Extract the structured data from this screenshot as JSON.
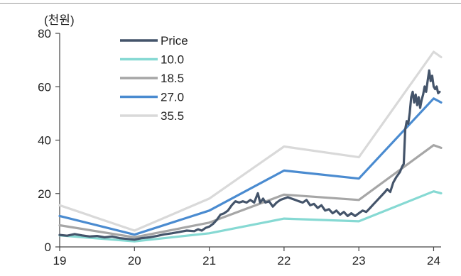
{
  "chart_data": {
    "type": "line",
    "unit_label": "(천원)",
    "xlim": [
      2019,
      2024.1
    ],
    "ylim": [
      0,
      80
    ],
    "x_ticks": [
      {
        "value": 2019,
        "label": "19"
      },
      {
        "value": 2020,
        "label": "20"
      },
      {
        "value": 2021,
        "label": "21"
      },
      {
        "value": 2022,
        "label": "22"
      },
      {
        "value": 2023,
        "label": "23"
      },
      {
        "value": 2024,
        "label": "24"
      }
    ],
    "y_ticks": [
      {
        "value": 0,
        "label": "0"
      },
      {
        "value": 20,
        "label": "20"
      },
      {
        "value": 40,
        "label": "40"
      },
      {
        "value": 60,
        "label": "60"
      },
      {
        "value": 80,
        "label": "80"
      }
    ],
    "legend_position": "top-left",
    "series": [
      {
        "name": "Price",
        "color": "#44546a",
        "width": 3.2,
        "points": [
          [
            2019.0,
            4.5
          ],
          [
            2019.1,
            4.2
          ],
          [
            2019.2,
            4.8
          ],
          [
            2019.3,
            4.3
          ],
          [
            2019.4,
            3.9
          ],
          [
            2019.5,
            4.1
          ],
          [
            2019.6,
            3.6
          ],
          [
            2019.7,
            3.9
          ],
          [
            2019.8,
            3.3
          ],
          [
            2019.9,
            3.0
          ],
          [
            2020.0,
            2.7
          ],
          [
            2020.1,
            3.3
          ],
          [
            2020.2,
            3.6
          ],
          [
            2020.3,
            4.1
          ],
          [
            2020.4,
            4.7
          ],
          [
            2020.5,
            5.1
          ],
          [
            2020.6,
            5.6
          ],
          [
            2020.7,
            6.1
          ],
          [
            2020.8,
            5.9
          ],
          [
            2020.85,
            6.6
          ],
          [
            2020.9,
            6.1
          ],
          [
            2020.95,
            7.1
          ],
          [
            2021.0,
            7.6
          ],
          [
            2021.05,
            8.6
          ],
          [
            2021.1,
            10.1
          ],
          [
            2021.15,
            12.1
          ],
          [
            2021.2,
            12.6
          ],
          [
            2021.25,
            13.6
          ],
          [
            2021.3,
            15.6
          ],
          [
            2021.35,
            17.1
          ],
          [
            2021.4,
            16.6
          ],
          [
            2021.45,
            17.1
          ],
          [
            2021.5,
            16.6
          ],
          [
            2021.55,
            17.6
          ],
          [
            2021.6,
            16.6
          ],
          [
            2021.65,
            20.1
          ],
          [
            2021.68,
            16.6
          ],
          [
            2021.72,
            18.1
          ],
          [
            2021.75,
            16.6
          ],
          [
            2021.8,
            17.1
          ],
          [
            2021.85,
            15.1
          ],
          [
            2021.9,
            16.6
          ],
          [
            2021.95,
            17.6
          ],
          [
            2022.0,
            18.1
          ],
          [
            2022.05,
            18.6
          ],
          [
            2022.1,
            18.1
          ],
          [
            2022.15,
            17.6
          ],
          [
            2022.2,
            17.1
          ],
          [
            2022.25,
            16.6
          ],
          [
            2022.3,
            17.6
          ],
          [
            2022.35,
            15.6
          ],
          [
            2022.4,
            16.1
          ],
          [
            2022.45,
            14.6
          ],
          [
            2022.5,
            15.6
          ],
          [
            2022.55,
            13.6
          ],
          [
            2022.6,
            14.1
          ],
          [
            2022.65,
            12.6
          ],
          [
            2022.7,
            13.6
          ],
          [
            2022.75,
            12.1
          ],
          [
            2022.8,
            13.1
          ],
          [
            2022.85,
            11.6
          ],
          [
            2022.9,
            12.6
          ],
          [
            2022.95,
            11.6
          ],
          [
            2023.0,
            12.6
          ],
          [
            2023.05,
            13.6
          ],
          [
            2023.1,
            13.1
          ],
          [
            2023.15,
            14.6
          ],
          [
            2023.2,
            16.1
          ],
          [
            2023.25,
            17.6
          ],
          [
            2023.3,
            19.1
          ],
          [
            2023.35,
            20.6
          ],
          [
            2023.38,
            21.6
          ],
          [
            2023.42,
            20.6
          ],
          [
            2023.46,
            24.1
          ],
          [
            2023.5,
            26.1
          ],
          [
            2023.55,
            28.1
          ],
          [
            2023.58,
            30.1
          ],
          [
            2023.6,
            31.1
          ],
          [
            2023.62,
            44.1
          ],
          [
            2023.64,
            47.1
          ],
          [
            2023.66,
            46.1
          ],
          [
            2023.68,
            50.1
          ],
          [
            2023.7,
            56.1
          ],
          [
            2023.72,
            58.1
          ],
          [
            2023.74,
            54.1
          ],
          [
            2023.76,
            57.1
          ],
          [
            2023.78,
            53.1
          ],
          [
            2023.8,
            56.1
          ],
          [
            2023.82,
            52.1
          ],
          [
            2023.84,
            55.1
          ],
          [
            2023.86,
            57.1
          ],
          [
            2023.88,
            60.1
          ],
          [
            2023.9,
            58.1
          ],
          [
            2023.92,
            62.1
          ],
          [
            2023.94,
            66.1
          ],
          [
            2023.96,
            62.1
          ],
          [
            2023.98,
            64.1
          ],
          [
            2024.0,
            60.1
          ],
          [
            2024.02,
            59.1
          ],
          [
            2024.04,
            60.1
          ],
          [
            2024.06,
            57.6
          ],
          [
            2024.08,
            58.1
          ]
        ]
      },
      {
        "name": "10.0",
        "color": "#86d9d3",
        "width": 3.2,
        "points": [
          [
            2019.0,
            4.3
          ],
          [
            2020.0,
            2.1
          ],
          [
            2021.0,
            5.1
          ],
          [
            2022.0,
            10.6
          ],
          [
            2023.0,
            9.6
          ],
          [
            2024.0,
            20.8
          ],
          [
            2024.1,
            20.1
          ]
        ]
      },
      {
        "name": "18.5",
        "color": "#a6a6a6",
        "width": 3.2,
        "points": [
          [
            2019.0,
            8.1
          ],
          [
            2020.0,
            3.6
          ],
          [
            2021.0,
            9.1
          ],
          [
            2022.0,
            19.6
          ],
          [
            2023.0,
            17.6
          ],
          [
            2024.0,
            38.1
          ],
          [
            2024.1,
            37.1
          ]
        ]
      },
      {
        "name": "27.0",
        "color": "#4a8bd0",
        "width": 3.2,
        "points": [
          [
            2019.0,
            11.6
          ],
          [
            2020.0,
            4.6
          ],
          [
            2021.0,
            13.6
          ],
          [
            2022.0,
            28.6
          ],
          [
            2023.0,
            25.6
          ],
          [
            2024.0,
            55.6
          ],
          [
            2024.1,
            54.1
          ]
        ]
      },
      {
        "name": "35.5",
        "color": "#d9d9d9",
        "width": 3.2,
        "points": [
          [
            2019.0,
            15.6
          ],
          [
            2020.0,
            6.1
          ],
          [
            2021.0,
            18.1
          ],
          [
            2022.0,
            37.6
          ],
          [
            2023.0,
            33.6
          ],
          [
            2024.0,
            73.1
          ],
          [
            2024.1,
            71.1
          ]
        ]
      }
    ]
  }
}
